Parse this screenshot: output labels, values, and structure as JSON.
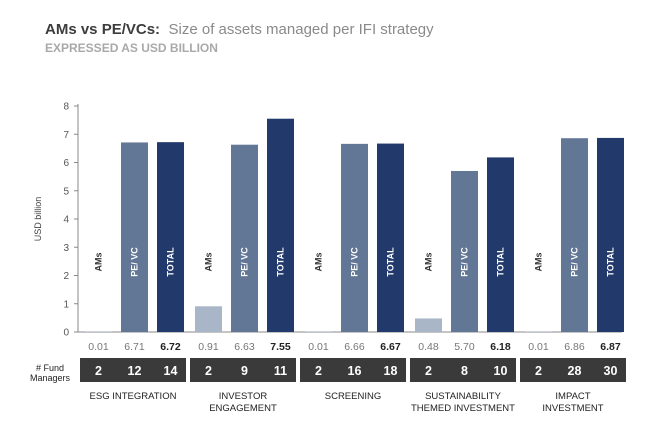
{
  "header": {
    "title_bold": "AMs vs PE/VCs:",
    "title_rest": "Size of assets managed per IFI strategy",
    "subtitle": "EXPRESSED AS USD BILLION"
  },
  "chart_data": {
    "type": "bar",
    "ylabel": "USD billion",
    "ylim": [
      0,
      8
    ],
    "yticks": [
      0,
      1,
      2,
      3,
      4,
      5,
      6,
      7,
      8
    ],
    "groups": [
      {
        "lines": [
          "ESG INTEGRATION"
        ]
      },
      {
        "lines": [
          "INVESTOR",
          "ENGAGEMENT"
        ]
      },
      {
        "lines": [
          "SCREENING"
        ]
      },
      {
        "lines": [
          "SUSTAINABILITY",
          "THEMED INVESTMENT"
        ]
      },
      {
        "lines": [
          "IMPACT",
          "INVESTMENT"
        ]
      }
    ],
    "series": [
      {
        "name": "AMs",
        "label": "AMs",
        "color": "#a9b6c8",
        "values": [
          0.01,
          0.91,
          0.01,
          0.48,
          0.01
        ],
        "value_labels": [
          "0.01",
          "0.91",
          "0.01",
          "0.48",
          "0.01"
        ],
        "fund_managers": [
          "2",
          "2",
          "2",
          "2",
          "2"
        ]
      },
      {
        "name": "PE/VC",
        "label": "PE/ VC",
        "color": "#627796",
        "values": [
          6.71,
          6.63,
          6.66,
          5.7,
          6.86
        ],
        "value_labels": [
          "6.71",
          "6.63",
          "6.66",
          "5.70",
          "6.86"
        ],
        "fund_managers": [
          "12",
          "9",
          "16",
          "8",
          "28"
        ]
      },
      {
        "name": "TOTAL",
        "label": "TOTAL",
        "color": "#22396b",
        "values": [
          6.72,
          7.55,
          6.67,
          6.18,
          6.87
        ],
        "value_labels": [
          "6.72",
          "7.55",
          "6.67",
          "6.18",
          "6.87"
        ],
        "fund_managers": [
          "14",
          "11",
          "18",
          "10",
          "30"
        ]
      }
    ],
    "fund_managers_label": [
      "# Fund",
      "Managers"
    ],
    "colors": {
      "box": "#3a3a3a",
      "axis": "#888888",
      "grid_text": "#555555"
    }
  }
}
